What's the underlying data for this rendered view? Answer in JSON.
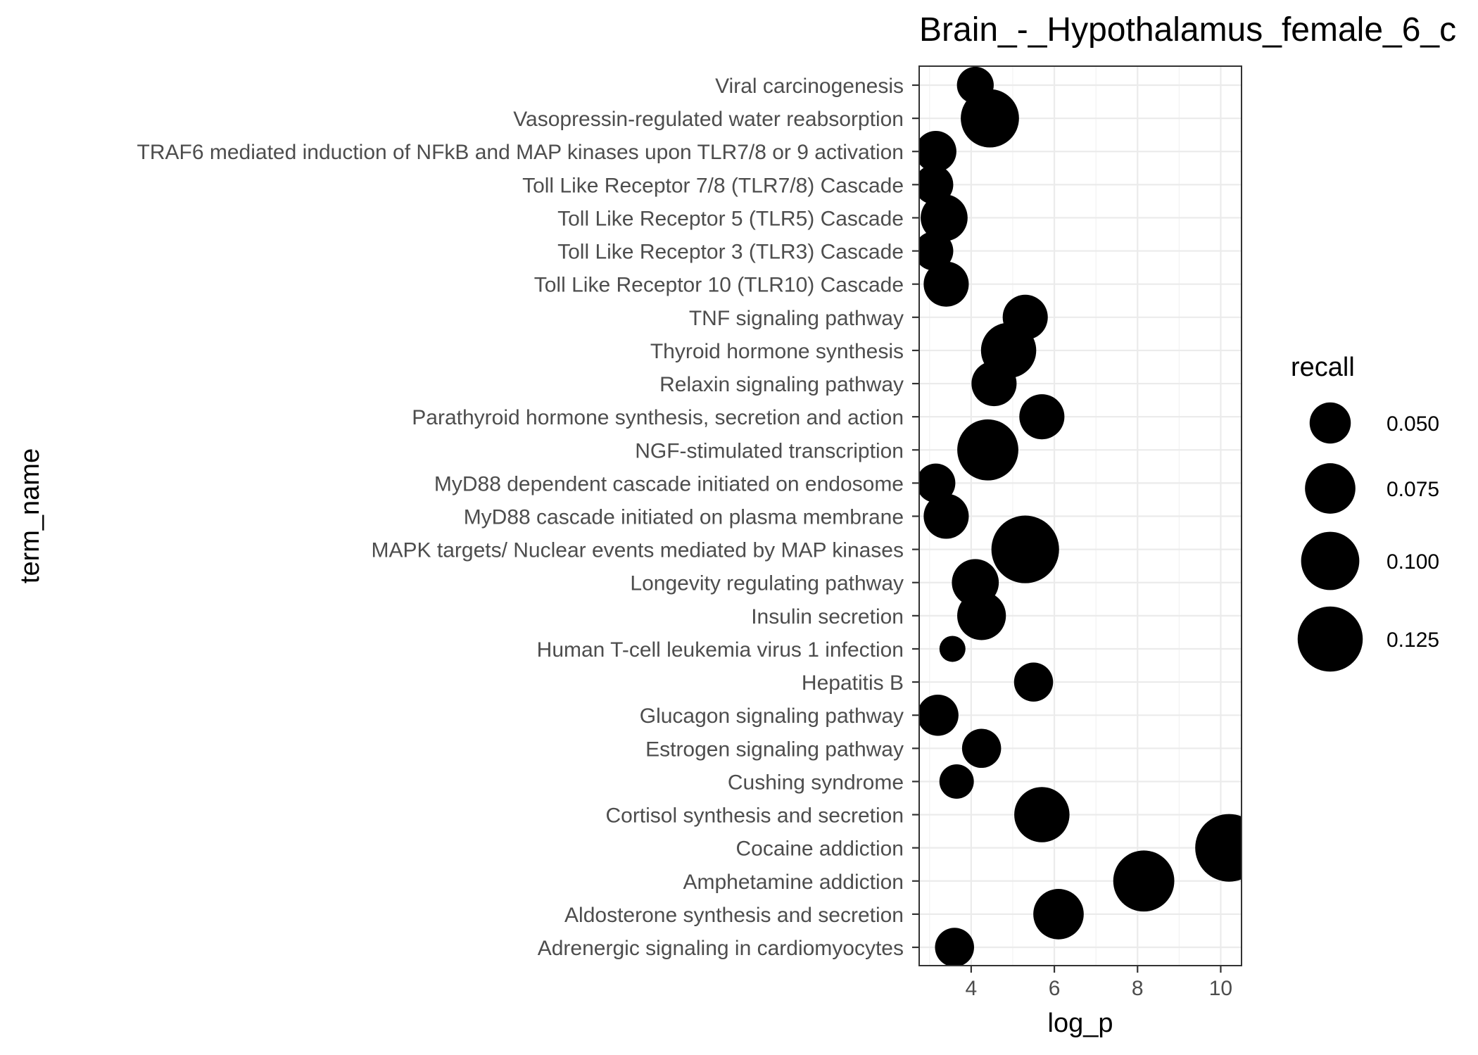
{
  "chart_data": {
    "type": "scatter",
    "title": "Brain_-_Hypothalamus_female_6_c",
    "xlabel": "log_p",
    "ylabel": "term_name",
    "xlim": [
      2.75,
      10.5
    ],
    "x_ticks": [
      4,
      6,
      8,
      10
    ],
    "grid": true,
    "legend": {
      "title": "recall",
      "position": "right",
      "entries": [
        {
          "label": "0.050",
          "value": 0.05
        },
        {
          "label": "0.075",
          "value": 0.075
        },
        {
          "label": "0.100",
          "value": 0.1
        },
        {
          "label": "0.125",
          "value": 0.125
        }
      ]
    },
    "points": [
      {
        "term": "Viral carcinogenesis",
        "log_p": 4.1,
        "recall": 0.04
      },
      {
        "term": "Vasopressin-regulated water reabsorption",
        "log_p": 4.45,
        "recall": 0.1
      },
      {
        "term": "TRAF6 mediated induction of NFkB and MAP kinases upon TLR7/8 or 9 activation",
        "log_p": 3.15,
        "recall": 0.05
      },
      {
        "term": "Toll Like Receptor 7/8 (TLR7/8) Cascade",
        "log_p": 3.1,
        "recall": 0.045
      },
      {
        "term": "Toll Like Receptor 5 (TLR5) Cascade",
        "log_p": 3.35,
        "recall": 0.065
      },
      {
        "term": "Toll Like Receptor 3 (TLR3) Cascade",
        "log_p": 3.1,
        "recall": 0.045
      },
      {
        "term": "Toll Like Receptor 10 (TLR10) Cascade",
        "log_p": 3.4,
        "recall": 0.06
      },
      {
        "term": "TNF signaling pathway",
        "log_p": 5.3,
        "recall": 0.06
      },
      {
        "term": "Thyroid hormone synthesis",
        "log_p": 4.9,
        "recall": 0.09
      },
      {
        "term": "Relaxin signaling pathway",
        "log_p": 4.55,
        "recall": 0.06
      },
      {
        "term": "Parathyroid hormone synthesis, secretion and action",
        "log_p": 5.7,
        "recall": 0.06
      },
      {
        "term": "NGF-stimulated transcription",
        "log_p": 4.4,
        "recall": 0.11
      },
      {
        "term": "MyD88 dependent cascade initiated on endosome",
        "log_p": 3.15,
        "recall": 0.045
      },
      {
        "term": "MyD88 cascade initiated on plasma membrane",
        "log_p": 3.4,
        "recall": 0.06
      },
      {
        "term": "MAPK targets/ Nuclear events mediated by MAP kinases",
        "log_p": 5.3,
        "recall": 0.135
      },
      {
        "term": "Longevity regulating pathway",
        "log_p": 4.1,
        "recall": 0.065
      },
      {
        "term": "Insulin secretion",
        "log_p": 4.25,
        "recall": 0.07
      },
      {
        "term": "Human T-cell leukemia virus 1 infection",
        "log_p": 3.55,
        "recall": 0.02
      },
      {
        "term": "Hepatitis B",
        "log_p": 5.5,
        "recall": 0.045
      },
      {
        "term": "Glucagon signaling pathway",
        "log_p": 3.2,
        "recall": 0.05
      },
      {
        "term": "Estrogen signaling pathway",
        "log_p": 4.25,
        "recall": 0.045
      },
      {
        "term": "Cushing syndrome",
        "log_p": 3.65,
        "recall": 0.035
      },
      {
        "term": "Cortisol synthesis and secretion",
        "log_p": 5.7,
        "recall": 0.09
      },
      {
        "term": "Cocaine addiction",
        "log_p": 10.2,
        "recall": 0.135
      },
      {
        "term": "Amphetamine addiction",
        "log_p": 8.15,
        "recall": 0.11
      },
      {
        "term": "Aldosterone synthesis and secretion",
        "log_p": 6.1,
        "recall": 0.075
      },
      {
        "term": "Adrenergic signaling in cardiomyocytes",
        "log_p": 3.6,
        "recall": 0.045
      }
    ]
  }
}
